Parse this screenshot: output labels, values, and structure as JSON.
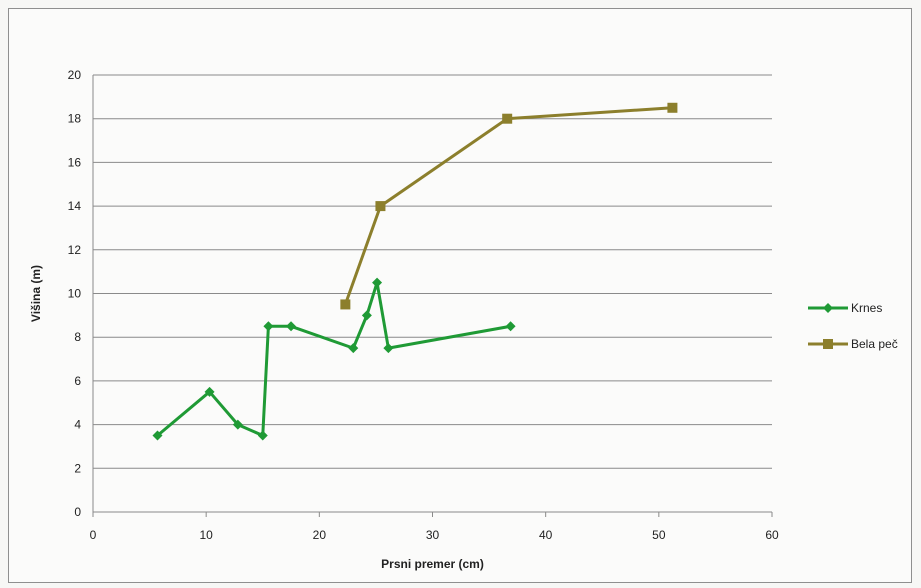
{
  "chart_data": {
    "type": "line",
    "xlabel": "Prsni premer (cm)",
    "ylabel": "Višina (m)",
    "xlim": [
      0,
      60
    ],
    "ylim": [
      0,
      20
    ],
    "xticks": [
      0,
      10,
      20,
      30,
      40,
      50,
      60
    ],
    "yticks": [
      0,
      2,
      4,
      6,
      8,
      10,
      12,
      14,
      16,
      18,
      20
    ],
    "grid": "horizontal",
    "legend_position": "right",
    "series": [
      {
        "name": "Krnes",
        "color": "#1f9a35",
        "marker": "diamond",
        "points": [
          {
            "x": 5.7,
            "y": 3.5
          },
          {
            "x": 10.3,
            "y": 5.5
          },
          {
            "x": 12.8,
            "y": 4.0
          },
          {
            "x": 15.0,
            "y": 3.5
          },
          {
            "x": 15.5,
            "y": 8.5
          },
          {
            "x": 17.5,
            "y": 8.5
          },
          {
            "x": 23.0,
            "y": 7.5
          },
          {
            "x": 24.2,
            "y": 9.0
          },
          {
            "x": 25.1,
            "y": 10.5
          },
          {
            "x": 26.1,
            "y": 7.5
          },
          {
            "x": 36.9,
            "y": 8.5
          }
        ]
      },
      {
        "name": "Bela peč",
        "color": "#8c7f2c",
        "marker": "square",
        "points": [
          {
            "x": 22.3,
            "y": 9.5
          },
          {
            "x": 25.4,
            "y": 14.0
          },
          {
            "x": 36.6,
            "y": 18.0
          },
          {
            "x": 51.2,
            "y": 18.5
          }
        ]
      }
    ]
  }
}
